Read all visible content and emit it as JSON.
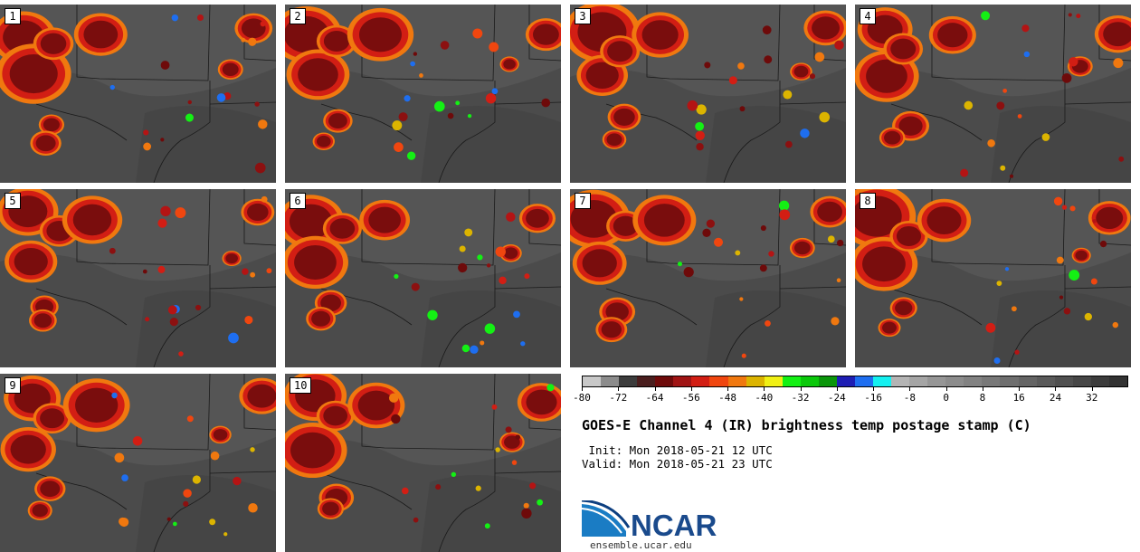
{
  "panels": [
    {
      "label": "1"
    },
    {
      "label": "2"
    },
    {
      "label": "3"
    },
    {
      "label": "4"
    },
    {
      "label": "5"
    },
    {
      "label": "6"
    },
    {
      "label": "7"
    },
    {
      "label": "8"
    },
    {
      "label": "9"
    },
    {
      "label": "10"
    }
  ],
  "colorbar": {
    "colors": [
      "#c8c8c8",
      "#8c8c8c",
      "#3c3c3c",
      "#4a1e1e",
      "#6e0a0a",
      "#a01414",
      "#d21e14",
      "#f0460f",
      "#f0780f",
      "#dcb400",
      "#f0f014",
      "#14f014",
      "#0ac80a",
      "#0a960a",
      "#1e1eb4",
      "#1e6ef0",
      "#14f0f0",
      "#b4b4b4",
      "#a5a5a5",
      "#969696",
      "#8c8c8c",
      "#828282",
      "#787878",
      "#6e6e6e",
      "#646464",
      "#5a5a5a",
      "#505050",
      "#464646",
      "#3c3c3c",
      "#323232"
    ],
    "ticks": [
      "-80",
      "-72",
      "-64",
      "-56",
      "-48",
      "-40",
      "-32",
      "-24",
      "-16",
      "-8",
      "0",
      "8",
      "16",
      "24",
      "32"
    ]
  },
  "title": "GOES-E Channel 4 (IR) brightness temp postage stamp (C)",
  "init": " Init: Mon 2018-05-21 12 UTC",
  "valid": "Valid: Mon 2018-05-21 23 UTC",
  "logo_text": "NCAR",
  "site": "ensemble.ucar.edu"
}
